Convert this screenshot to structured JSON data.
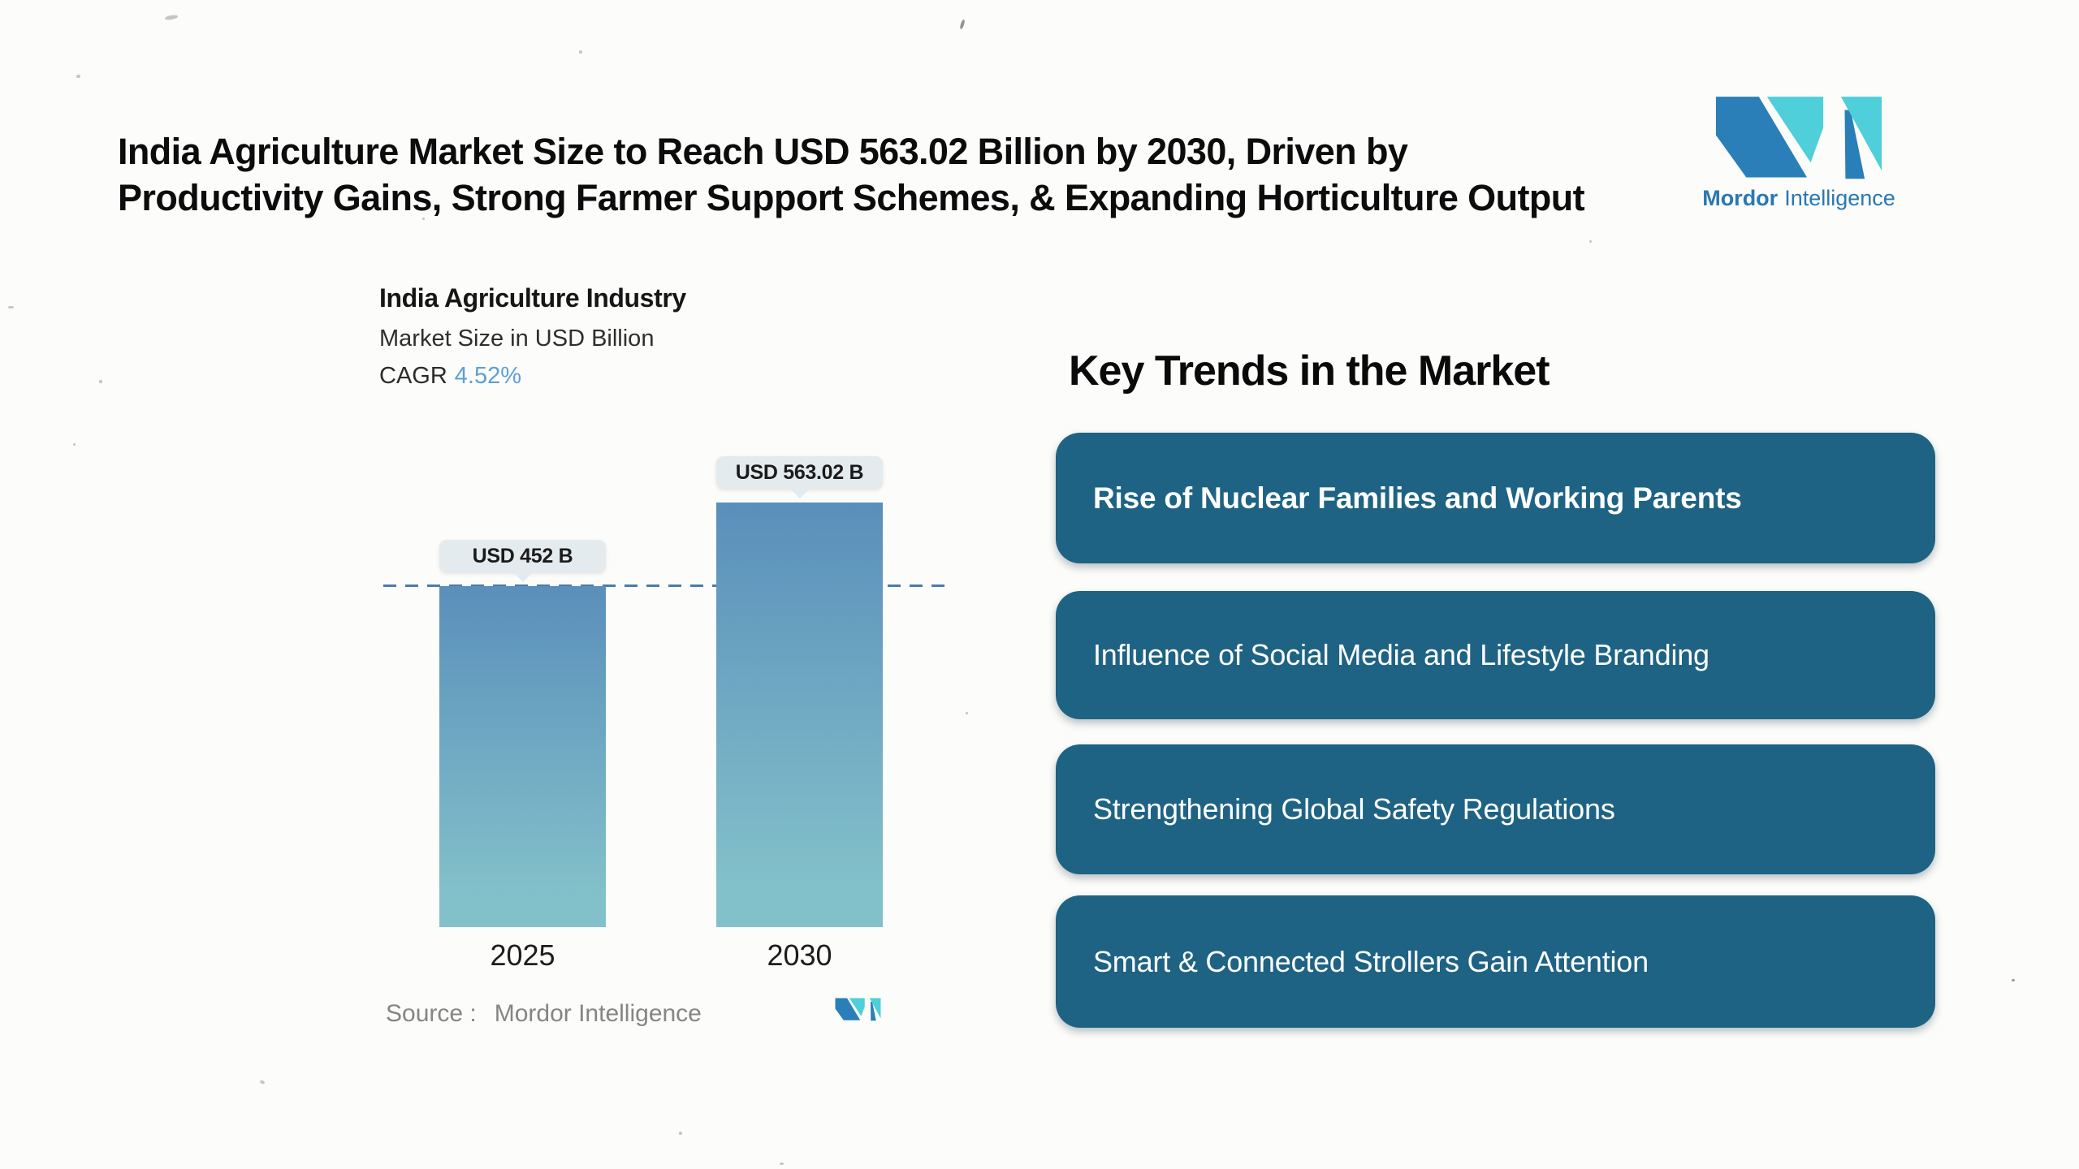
{
  "page": {
    "background": "#fcfcfa"
  },
  "header": {
    "title_line1": "India Agriculture Market Size to Reach USD 563.02 Billion by 2030, Driven by",
    "title_line2": "Productivity Gains, Strong Farmer Support Schemes, & Expanding Horticulture Output"
  },
  "brand": {
    "name_bold": "Mordor",
    "name_regular": "Intelligence",
    "logo_blue": "#2a7fb8",
    "logo_teal": "#4ecfda",
    "wordmark_color": "#2878b2"
  },
  "chart_data": {
    "type": "bar",
    "title": "India Agriculture Industry",
    "subtitle": "Market Size in USD Billion",
    "cagr_label": "CAGR",
    "cagr_value": "4.52%",
    "categories": [
      "2025",
      "2030"
    ],
    "values": [
      452,
      563.02
    ],
    "value_labels": [
      "USD 452 B",
      "USD 563.02 B"
    ],
    "unit": "USD Billion",
    "ylim": [
      0,
      563.02
    ],
    "reference_line_value": 452,
    "grid": false,
    "legend": false,
    "bar_gradient_top": "#5a8fbb",
    "bar_gradient_bottom": "#83c1ca",
    "reference_line_color": "#4c7ca8",
    "callout_bg": "#e4ebee",
    "cagr_accent": "#5da0d6",
    "source_label": "Source :",
    "source_value": "Mordor Intelligence"
  },
  "trends": {
    "heading": "Key Trends in the Market",
    "card_color": "#1e6384",
    "items": [
      {
        "label": "Rise of Nuclear Families and Working Parents",
        "emphasis": "bold"
      },
      {
        "label": "Influence of Social Media and Lifestyle Branding",
        "emphasis": "regular"
      },
      {
        "label": "Strengthening Global Safety Regulations",
        "emphasis": "regular"
      },
      {
        "label": "Smart & Connected Strollers Gain Attention",
        "emphasis": "regular"
      }
    ]
  }
}
